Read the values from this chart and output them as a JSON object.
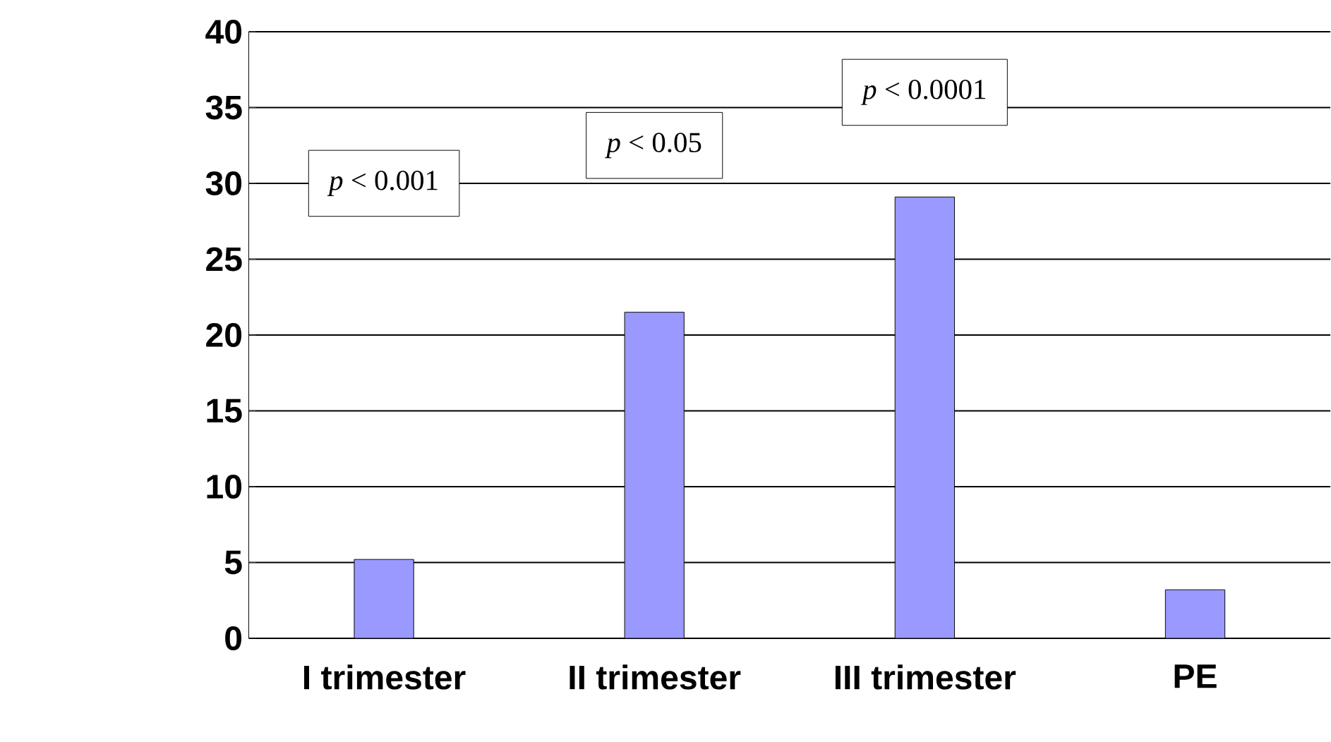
{
  "chart_data": {
    "type": "bar",
    "categories": [
      "I trimester",
      "II trimester",
      "III trimester",
      "PE"
    ],
    "values": [
      5.2,
      21.5,
      29.1,
      3.2
    ],
    "color": "#9999ff",
    "ylim": [
      0,
      40
    ],
    "yticks": [
      0,
      5,
      10,
      15,
      20,
      25,
      30,
      35,
      40
    ],
    "grid": "y",
    "legend": false,
    "annotations": [
      "*p* < 0.001",
      "*p* < 0.05",
      "*p* < 0.0001"
    ]
  }
}
